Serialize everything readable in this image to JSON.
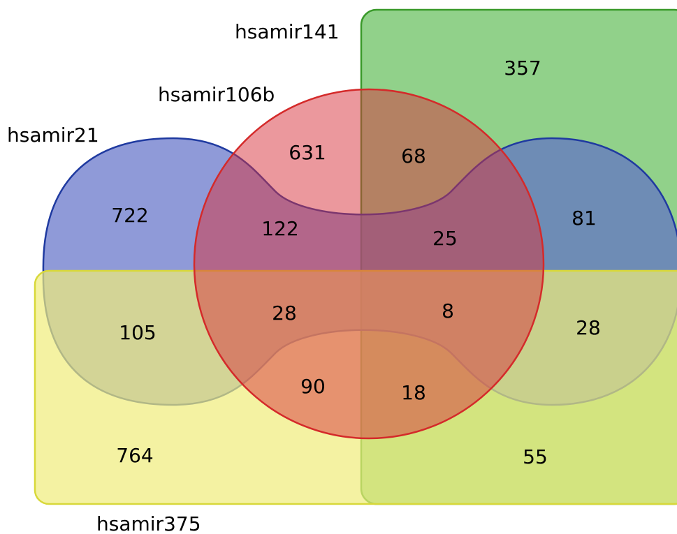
{
  "diagram": {
    "type": "venn",
    "sets": [
      {
        "id": "hsamir141",
        "label": "hsamir141",
        "color": "#8bcf84",
        "stroke": "#3a9a2a"
      },
      {
        "id": "hsamir106b",
        "label": "hsamir106b",
        "color": "#e8878a",
        "stroke": "#d42a2a"
      },
      {
        "id": "hsamir21",
        "label": "hsamir21",
        "color": "#8d98d8",
        "stroke": "#1f3aa0"
      },
      {
        "id": "hsamir375",
        "label": "hsamir375",
        "color": "#f2f09a",
        "stroke": "#d8d83a"
      }
    ],
    "regions": [
      {
        "id": "r-141-only",
        "sets": [
          "hsamir141"
        ],
        "count": "357"
      },
      {
        "id": "r-106b-only",
        "sets": [
          "hsamir106b"
        ],
        "count": "631"
      },
      {
        "id": "r-141-106b",
        "sets": [
          "hsamir141",
          "hsamir106b"
        ],
        "count": "68"
      },
      {
        "id": "r-21-only",
        "sets": [
          "hsamir21"
        ],
        "count": "722"
      },
      {
        "id": "r-21-106b",
        "sets": [
          "hsamir21",
          "hsamir106b"
        ],
        "count": "122"
      },
      {
        "id": "r-21-106b-141",
        "sets": [
          "hsamir21",
          "hsamir106b",
          "hsamir141"
        ],
        "count": "25"
      },
      {
        "id": "r-21-141",
        "sets": [
          "hsamir21",
          "hsamir141"
        ],
        "count": "81"
      },
      {
        "id": "r-21-375",
        "sets": [
          "hsamir21",
          "hsamir375"
        ],
        "count": "105"
      },
      {
        "id": "r-21-106b-375",
        "sets": [
          "hsamir21",
          "hsamir106b",
          "hsamir375"
        ],
        "count": "28"
      },
      {
        "id": "r-all",
        "sets": [
          "hsamir21",
          "hsamir106b",
          "hsamir141",
          "hsamir375"
        ],
        "count": "8"
      },
      {
        "id": "r-21-141-375",
        "sets": [
          "hsamir21",
          "hsamir141",
          "hsamir375"
        ],
        "count": "28"
      },
      {
        "id": "r-106b-375",
        "sets": [
          "hsamir106b",
          "hsamir375"
        ],
        "count": "90"
      },
      {
        "id": "r-106b-141-375",
        "sets": [
          "hsamir106b",
          "hsamir141",
          "hsamir375"
        ],
        "count": "18"
      },
      {
        "id": "r-375-only",
        "sets": [
          "hsamir375"
        ],
        "count": "764"
      },
      {
        "id": "r-141-375",
        "sets": [
          "hsamir141",
          "hsamir375"
        ],
        "count": "55"
      }
    ]
  }
}
